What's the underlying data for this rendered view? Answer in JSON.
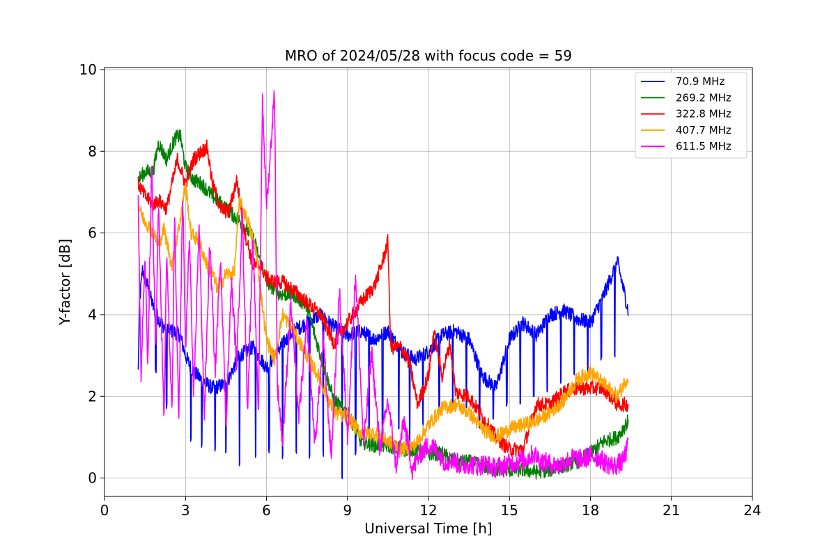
{
  "chart_data": {
    "type": "line",
    "title": "MRO of 2024/05/28 with focus code = 59",
    "xlabel": "Universal Time [h]",
    "ylabel": "Y-factor [dB]",
    "xlim": [
      0,
      24
    ],
    "ylim": [
      -0.45,
      10.05
    ],
    "xticks": [
      0,
      3,
      6,
      9,
      12,
      15,
      18,
      21,
      24
    ],
    "yticks": [
      0,
      2,
      4,
      6,
      8,
      10
    ],
    "grid": true,
    "legend_position": "top-right",
    "series": [
      {
        "name": " 70.9 MHz",
        "color": "#0000ff",
        "x": [
          1.25,
          1.3,
          1.4,
          1.6,
          1.8,
          2.0,
          2.2,
          2.5,
          2.8,
          3.0,
          3.2,
          3.6,
          4.0,
          4.5,
          5.0,
          5.5,
          6.0,
          6.5,
          7.0,
          7.5,
          8.0,
          8.5,
          9.0,
          9.5,
          10.0,
          10.5,
          11.0,
          11.5,
          12.0,
          12.5,
          13.0,
          13.5,
          14.0,
          14.5,
          15.0,
          15.5,
          16.0,
          16.5,
          17.0,
          17.5,
          18.0,
          18.5,
          19.0,
          19.4
        ],
        "y": [
          2.6,
          4.3,
          5.1,
          4.7,
          4.2,
          3.9,
          3.7,
          3.6,
          3.5,
          3.0,
          2.7,
          2.4,
          2.2,
          2.3,
          3.0,
          3.2,
          2.7,
          3.2,
          3.6,
          3.8,
          4.0,
          3.7,
          3.5,
          3.6,
          3.4,
          3.6,
          3.1,
          2.9,
          3.1,
          3.5,
          3.6,
          3.4,
          2.5,
          2.2,
          3.4,
          3.8,
          3.5,
          4.0,
          4.1,
          3.9,
          3.8,
          4.5,
          5.3,
          4.1
        ],
        "dips_x": [
          1.9,
          2.3,
          3.2,
          3.6,
          4.1,
          4.5,
          5.0,
          5.6,
          6.1,
          6.6,
          7.1,
          7.6,
          8.1,
          8.8,
          9.3,
          9.8,
          10.3,
          10.9,
          11.3,
          11.8,
          12.4,
          12.9,
          13.4,
          13.9,
          14.4,
          14.9,
          15.4,
          15.9,
          16.4,
          16.9,
          17.4,
          17.9,
          18.4,
          18.9
        ],
        "dips_y": [
          2.6,
          1.8,
          1.0,
          0.8,
          0.7,
          0.7,
          0.3,
          0.6,
          0.7,
          0.5,
          0.7,
          0.5,
          0.6,
          0.0,
          0.6,
          0.8,
          1.0,
          1.3,
          1.0,
          1.3,
          1.7,
          1.9,
          1.7,
          1.3,
          1.5,
          1.8,
          1.9,
          2.1,
          2.2,
          2.4,
          2.6,
          2.7,
          2.9,
          3.0
        ]
      },
      {
        "name": "269.2 MHz",
        "color": "#008000",
        "x": [
          1.25,
          1.5,
          1.8,
          2.0,
          2.3,
          2.6,
          2.8,
          3.0,
          3.3,
          3.6,
          4.0,
          4.5,
          5.0,
          5.5,
          6.0,
          6.5,
          7.0,
          7.5,
          8.0,
          8.5,
          9.0,
          9.5,
          10.0,
          10.5,
          11.0,
          11.5,
          12.0,
          12.5,
          13.0,
          13.5,
          14.0,
          14.5,
          15.0,
          15.5,
          16.0,
          16.5,
          17.0,
          17.5,
          18.0,
          18.5,
          19.0,
          19.4
        ],
        "y": [
          7.3,
          7.5,
          7.5,
          8.2,
          7.8,
          8.3,
          8.4,
          7.6,
          7.3,
          7.2,
          6.9,
          6.6,
          6.3,
          5.9,
          4.8,
          4.5,
          4.5,
          4.2,
          3.0,
          1.9,
          1.6,
          0.9,
          0.8,
          0.8,
          0.7,
          0.7,
          0.6,
          0.6,
          0.4,
          0.4,
          0.3,
          0.2,
          0.2,
          0.2,
          0.15,
          0.2,
          0.3,
          0.4,
          0.6,
          0.9,
          1.0,
          1.4
        ]
      },
      {
        "name": "322.8 MHz",
        "color": "#ff0000",
        "x": [
          1.25,
          1.5,
          1.8,
          2.0,
          2.3,
          2.5,
          2.7,
          3.0,
          3.3,
          3.6,
          3.8,
          4.0,
          4.3,
          4.6,
          4.9,
          5.2,
          5.5,
          5.8,
          6.0,
          6.3,
          6.6,
          7.0,
          7.5,
          8.0,
          8.5,
          9.0,
          9.5,
          10.0,
          10.3,
          10.5,
          10.6,
          11.0,
          11.3,
          11.6,
          12.0,
          12.2,
          12.5,
          12.8,
          13.0,
          13.5,
          14.0,
          14.5,
          15.0,
          15.5,
          16.0,
          16.5,
          17.0,
          17.5,
          18.0,
          18.5,
          19.0,
          19.4
        ],
        "y": [
          7.2,
          6.9,
          6.7,
          6.8,
          6.6,
          7.2,
          7.8,
          7.2,
          7.8,
          8.0,
          8.1,
          7.2,
          6.6,
          6.5,
          7.3,
          6.0,
          5.2,
          5.2,
          4.9,
          4.8,
          4.8,
          4.6,
          4.3,
          4.0,
          3.3,
          3.8,
          4.3,
          4.7,
          5.3,
          5.8,
          3.2,
          3.2,
          2.8,
          1.8,
          2.5,
          3.6,
          2.5,
          3.3,
          2.1,
          2.0,
          1.5,
          1.0,
          0.7,
          0.7,
          1.8,
          1.8,
          2.1,
          2.2,
          2.2,
          2.2,
          1.8,
          1.8
        ]
      },
      {
        "name": "407.7 MHz",
        "color": "#ffa500",
        "x": [
          1.25,
          1.4,
          1.6,
          1.8,
          2.0,
          2.2,
          2.5,
          2.8,
          3.0,
          3.2,
          3.5,
          3.8,
          4.0,
          4.2,
          4.5,
          4.8,
          5.0,
          5.3,
          5.6,
          6.0,
          6.3,
          6.6,
          7.0,
          7.5,
          8.0,
          8.5,
          9.0,
          9.5,
          10.0,
          10.5,
          11.0,
          11.5,
          12.0,
          12.5,
          13.0,
          13.5,
          14.0,
          14.5,
          15.0,
          15.5,
          16.0,
          16.5,
          17.0,
          17.5,
          18.0,
          18.5,
          19.0,
          19.4
        ],
        "y": [
          6.7,
          6.4,
          6.2,
          6.0,
          5.7,
          6.1,
          5.2,
          6.3,
          7.2,
          6.0,
          5.8,
          5.2,
          5.0,
          4.6,
          5.0,
          5.0,
          6.8,
          6.3,
          5.6,
          3.4,
          2.9,
          4.0,
          3.6,
          3.0,
          2.4,
          1.6,
          1.5,
          1.1,
          1.1,
          0.9,
          0.7,
          0.8,
          1.3,
          1.7,
          1.8,
          1.6,
          1.2,
          1.0,
          1.2,
          1.3,
          1.4,
          1.6,
          1.9,
          2.4,
          2.6,
          2.3,
          2.0,
          2.5
        ]
      },
      {
        "name": "611.5 MHz",
        "color": "#ff00ff",
        "x": [
          1.25,
          1.35,
          1.5,
          1.6,
          1.75,
          1.9,
          2.0,
          2.2,
          2.3,
          2.5,
          2.6,
          2.75,
          2.9,
          3.0,
          3.15,
          3.3,
          3.5,
          3.7,
          3.9,
          4.1,
          4.3,
          4.5,
          4.7,
          4.9,
          5.1,
          5.3,
          5.5,
          5.7,
          5.85,
          6.0,
          6.1,
          6.3,
          6.4,
          6.6,
          6.9,
          7.2,
          7.5,
          7.8,
          8.1,
          8.4,
          8.7,
          9.0,
          9.3,
          9.6,
          9.9,
          10.2,
          10.5,
          10.8,
          11.1,
          11.4,
          11.7,
          12.0,
          12.3,
          12.6,
          12.9,
          13.2,
          13.5,
          13.8,
          14.1,
          14.4,
          14.7,
          15.0,
          15.3,
          15.6,
          15.9,
          16.2,
          16.5,
          16.8,
          17.1,
          17.4,
          17.7,
          18.0,
          18.3,
          18.6,
          18.9,
          19.2,
          19.4
        ],
        "y": [
          6.8,
          2.5,
          5.5,
          2.6,
          7.6,
          3.0,
          6.7,
          1.4,
          5.4,
          1.6,
          6.5,
          1.3,
          7.0,
          3.1,
          6.0,
          1.8,
          6.2,
          1.5,
          5.8,
          2.6,
          5.5,
          1.3,
          4.8,
          2.8,
          6.5,
          1.7,
          6.0,
          1.4,
          9.3,
          6.7,
          7.5,
          9.5,
          2.3,
          0.9,
          4.3,
          1.5,
          3.8,
          0.8,
          3.4,
          0.5,
          4.6,
          1.0,
          5.0,
          0.8,
          3.1,
          0.7,
          1.9,
          0.3,
          1.4,
          0.2,
          0.6,
          0.8,
          0.7,
          0.4,
          0.45,
          0.3,
          0.35,
          0.3,
          0.35,
          0.25,
          0.3,
          0.35,
          0.4,
          0.45,
          0.6,
          0.4,
          0.35,
          0.3,
          0.4,
          0.5,
          0.45,
          0.55,
          0.5,
          0.35,
          0.3,
          0.4,
          0.8
        ]
      }
    ]
  }
}
